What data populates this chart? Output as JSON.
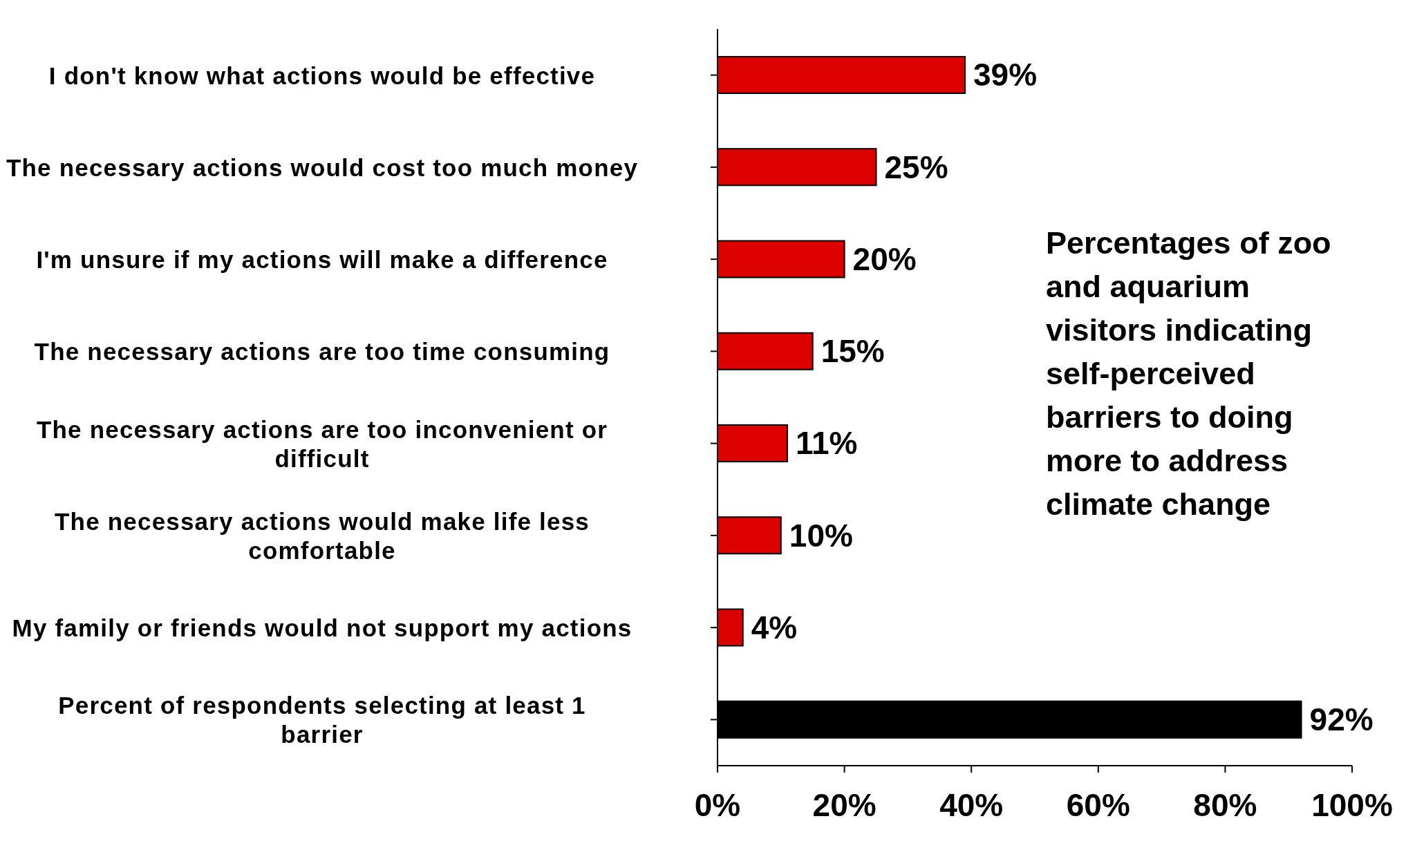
{
  "chart_data": {
    "type": "bar",
    "orientation": "horizontal",
    "categories": [
      "I don't know what actions would be effective",
      "The necessary actions would cost too much money",
      "I'm unsure if my actions will make a difference",
      "The necessary actions are too time consuming",
      "The necessary actions are too inconvenient or difficult",
      "The necessary actions would make life less comfortable",
      "My family or friends would not support my actions",
      "Percent of respondents selecting at least 1 barrier"
    ],
    "values": [
      39,
      25,
      20,
      15,
      11,
      10,
      4,
      92
    ],
    "colors": [
      "#dd0000",
      "#dd0000",
      "#dd0000",
      "#dd0000",
      "#dd0000",
      "#dd0000",
      "#dd0000",
      "#000000"
    ],
    "value_labels": [
      "39%",
      "25%",
      "20%",
      "15%",
      "11%",
      "10%",
      "4%",
      "92%"
    ],
    "xlim": [
      0,
      100
    ],
    "xticks": [
      {
        "value": 0,
        "label": "0%"
      },
      {
        "value": 20,
        "label": "20%"
      },
      {
        "value": 40,
        "label": "40%"
      },
      {
        "value": 60,
        "label": "60%"
      },
      {
        "value": 80,
        "label": "80%"
      },
      {
        "value": 100,
        "label": "100%"
      }
    ],
    "grid": false,
    "annotations": [
      "Percentages of zoo and aquarium visitors indicating self-perceived barriers to doing more to address climate change"
    ]
  }
}
